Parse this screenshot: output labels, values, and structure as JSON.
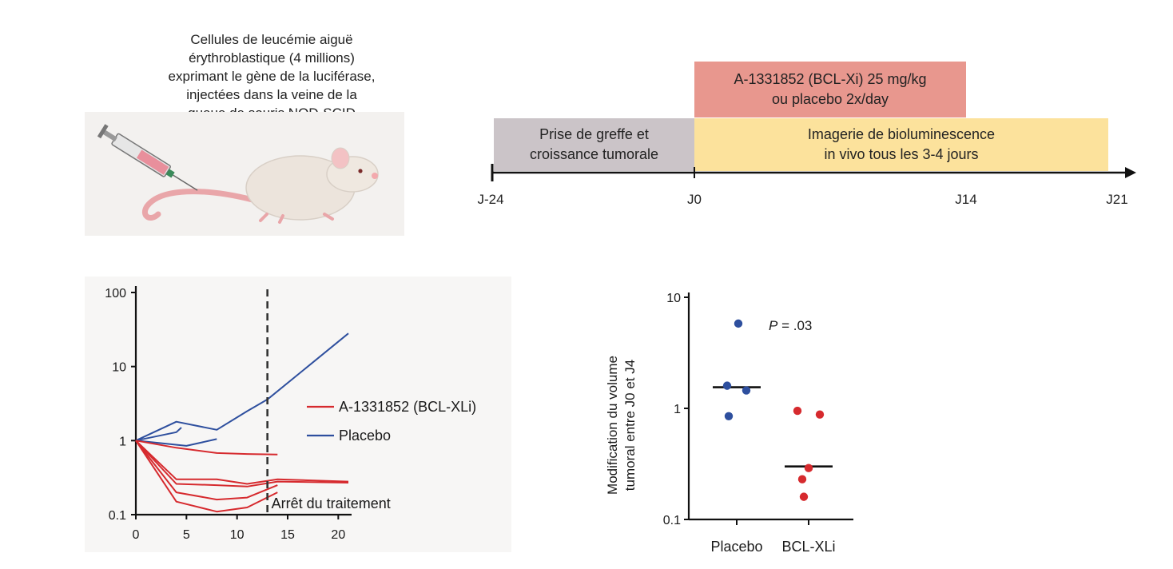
{
  "injection": {
    "lines": [
      "Cellules de leucémie aiguë",
      "érythroblastique (4 millions)",
      "exprimant le gène de la luciférase,",
      "injectées dans la veine de la",
      "queue de souris NOD-SCID"
    ]
  },
  "timeline": {
    "treatment_box": {
      "lines": [
        "A-1331852 (BCL-Xi) 25 mg/kg",
        "ou placebo 2x/day"
      ],
      "color": "#e8978e"
    },
    "engraftment_box": {
      "lines": [
        "Prise de greffe et",
        "croissance tumorale"
      ],
      "color": "#cbc4c8"
    },
    "imaging_box": {
      "lines": [
        "Imagerie de bioluminescence",
        "in vivo tous les 3-4 jours"
      ],
      "color": "#fce29c"
    },
    "ticks": [
      "J-24",
      "J0",
      "J14",
      "J21"
    ]
  },
  "chart_data": [
    {
      "type": "line",
      "yscale": "log",
      "ylim": [
        0.1,
        100
      ],
      "xlim": [
        0,
        21
      ],
      "xticks": [
        "0",
        "5",
        "10",
        "15",
        "20"
      ],
      "yticks": [
        "100",
        "10",
        "1",
        "0.1"
      ],
      "x_tick_values": [
        0,
        5,
        10,
        15,
        20
      ],
      "y_tick_values": [
        100,
        10,
        1,
        0.1
      ],
      "legend": [
        {
          "name": "A-1331852 (BCL-XLi)",
          "color": "#d62a2e"
        },
        {
          "name": "Placebo",
          "color": "#2e4f9e"
        }
      ],
      "vline": {
        "x": 13,
        "label": "Arrêt du traitement"
      },
      "series": [
        {
          "group": "Placebo",
          "color": "#2e4f9e",
          "points": [
            [
              0,
              1
            ],
            [
              4,
              1.8
            ],
            [
              8,
              1.4
            ],
            [
              11,
              2.5
            ],
            [
              13,
              3.6
            ],
            [
              21,
              28
            ]
          ]
        },
        {
          "group": "Placebo",
          "color": "#2e4f9e",
          "points": [
            [
              0,
              1
            ],
            [
              4,
              1.3
            ],
            [
              4.5,
              1.5
            ]
          ]
        },
        {
          "group": "Placebo",
          "color": "#2e4f9e",
          "points": [
            [
              0,
              1
            ],
            [
              5,
              0.85
            ],
            [
              8,
              1.05
            ]
          ]
        },
        {
          "group": "BCL-XLi",
          "color": "#d62a2e",
          "points": [
            [
              0,
              1
            ],
            [
              4,
              0.8
            ],
            [
              8,
              0.68
            ],
            [
              11,
              0.66
            ],
            [
              14,
              0.65
            ]
          ]
        },
        {
          "group": "BCL-XLi",
          "color": "#d62a2e",
          "points": [
            [
              0,
              1
            ],
            [
              4,
              0.3
            ],
            [
              8,
              0.3
            ],
            [
              11,
              0.26
            ],
            [
              14,
              0.3
            ],
            [
              21,
              0.28
            ]
          ]
        },
        {
          "group": "BCL-XLi",
          "color": "#d62a2e",
          "points": [
            [
              0,
              1
            ],
            [
              4,
              0.26
            ],
            [
              8,
              0.25
            ],
            [
              11,
              0.24
            ],
            [
              14,
              0.28
            ],
            [
              21,
              0.27
            ]
          ]
        },
        {
          "group": "BCL-XLi",
          "color": "#d62a2e",
          "points": [
            [
              0,
              1
            ],
            [
              4,
              0.2
            ],
            [
              8,
              0.16
            ],
            [
              11,
              0.17
            ],
            [
              14,
              0.25
            ]
          ]
        },
        {
          "group": "BCL-XLi",
          "color": "#d62a2e",
          "points": [
            [
              0,
              1
            ],
            [
              4,
              0.15
            ],
            [
              8,
              0.11
            ],
            [
              11,
              0.125
            ],
            [
              14,
              0.2
            ]
          ]
        }
      ]
    },
    {
      "type": "scatter",
      "yscale": "log",
      "ylim": [
        0.1,
        10
      ],
      "ylabel_lines": [
        "Modification du volume",
        "tumoral entre J0 et J4"
      ],
      "yticks": [
        "10",
        "1",
        "0.1"
      ],
      "y_tick_values": [
        10,
        1,
        0.1
      ],
      "categories": [
        "Placebo",
        "BCL-XLi"
      ],
      "annotation": {
        "prefix": "P",
        "text": " = .03"
      },
      "series": [
        {
          "name": "Placebo",
          "color": "#2e4f9e",
          "values": [
            5.8,
            1.6,
            1.45,
            0.85
          ],
          "median": 1.55
        },
        {
          "name": "BCL-XLi",
          "color": "#d62a2e",
          "values": [
            0.95,
            0.88,
            0.29,
            0.23,
            0.16
          ],
          "median": 0.3
        }
      ]
    }
  ]
}
